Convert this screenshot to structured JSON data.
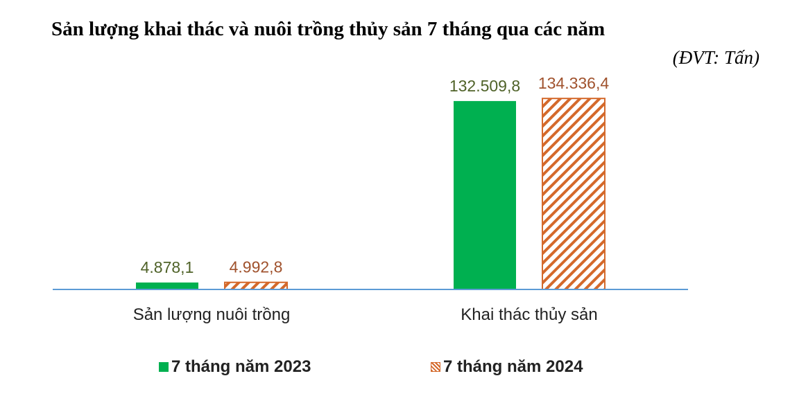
{
  "title": "Sản lượng khai thác và nuôi trồng thủy sản 7 tháng qua các năm",
  "unit_label": "(ĐVT: Tấn)",
  "colors": {
    "series_2023": "#00b050",
    "series_2024": "#d4692b",
    "label_2023": "#4f6228",
    "label_2024": "#a0522d",
    "axis": "#5b9bd5"
  },
  "chart_data": {
    "type": "bar",
    "categories": [
      "Sản lượng nuôi trồng",
      "Khai thác thủy sản"
    ],
    "series": [
      {
        "name": "7 tháng năm 2023",
        "values": [
          4878.1,
          132509.8
        ],
        "labels": [
          "4.878,1",
          "132.509,8"
        ],
        "fill": "solid"
      },
      {
        "name": "7 tháng năm 2024",
        "values": [
          4992.8,
          134336.4
        ],
        "labels": [
          "4.992,8",
          "134.336,4"
        ],
        "fill": "hatch"
      }
    ],
    "ylim": [
      0,
      150000
    ],
    "grid": false,
    "legend_position": "bottom"
  }
}
